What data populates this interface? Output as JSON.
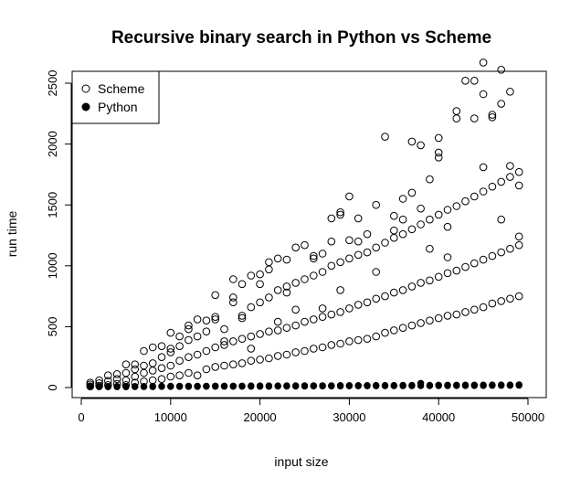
{
  "chart_data": {
    "type": "scatter",
    "title": "Recursive binary search in Python vs Scheme",
    "xlabel": "input size",
    "ylabel": "run time",
    "xlim": [
      0,
      50000
    ],
    "ylim": [
      -30,
      2750
    ],
    "x_ticks": [
      0,
      10000,
      20000,
      30000,
      40000,
      50000
    ],
    "x_tick_labels": [
      "0",
      "10000",
      "20000",
      "30000",
      "40000",
      "50000"
    ],
    "y_ticks": [
      0,
      500,
      1000,
      1500,
      2000,
      2500
    ],
    "y_tick_labels": [
      "0",
      "500",
      "1000",
      "1500",
      "2000",
      "2500"
    ],
    "grid": false,
    "legend_position": "top-left",
    "series": [
      {
        "name": "Scheme",
        "marker": "open-circle",
        "x": [
          1000,
          1000,
          1000,
          2000,
          2000,
          2000,
          3000,
          3000,
          3000,
          4000,
          4000,
          4000,
          5000,
          5000,
          5000,
          5000,
          6000,
          6000,
          6000,
          6000,
          7000,
          7000,
          7000,
          7000,
          8000,
          8000,
          8000,
          8000,
          9000,
          9000,
          9000,
          9000,
          10000,
          10000,
          10000,
          10000,
          10000,
          11000,
          11000,
          11000,
          11000,
          12000,
          12000,
          12000,
          12000,
          12000,
          13000,
          13000,
          13000,
          13000,
          14000,
          14000,
          14000,
          14000,
          15000,
          15000,
          15000,
          15000,
          15000,
          16000,
          16000,
          16000,
          16000,
          17000,
          17000,
          17000,
          17000,
          17000,
          18000,
          18000,
          18000,
          18000,
          18000,
          19000,
          19000,
          19000,
          19000,
          19000,
          20000,
          20000,
          20000,
          20000,
          20000,
          21000,
          21000,
          21000,
          21000,
          21000,
          22000,
          22000,
          22000,
          22000,
          22000,
          23000,
          23000,
          23000,
          23000,
          23000,
          24000,
          24000,
          24000,
          24000,
          24000,
          25000,
          25000,
          25000,
          25000,
          26000,
          26000,
          26000,
          26000,
          26000,
          27000,
          27000,
          27000,
          27000,
          27000,
          28000,
          28000,
          28000,
          28000,
          28000,
          29000,
          29000,
          29000,
          29000,
          29000,
          29000,
          30000,
          30000,
          30000,
          30000,
          30000,
          31000,
          31000,
          31000,
          31000,
          31000,
          32000,
          32000,
          32000,
          32000,
          33000,
          33000,
          33000,
          33000,
          33000,
          34000,
          34000,
          34000,
          34000,
          35000,
          35000,
          35000,
          35000,
          35000,
          36000,
          36000,
          36000,
          36000,
          36000,
          37000,
          37000,
          37000,
          37000,
          37000,
          38000,
          38000,
          38000,
          38000,
          38000,
          39000,
          39000,
          39000,
          39000,
          39000,
          40000,
          40000,
          40000,
          40000,
          40000,
          40000,
          41000,
          41000,
          41000,
          41000,
          41000,
          42000,
          42000,
          42000,
          42000,
          42000,
          43000,
          43000,
          43000,
          43000,
          44000,
          44000,
          44000,
          44000,
          44000,
          45000,
          45000,
          45000,
          45000,
          45000,
          45000,
          46000,
          46000,
          46000,
          46000,
          46000,
          47000,
          47000,
          47000,
          47000,
          47000,
          47000,
          48000,
          48000,
          48000,
          48000,
          48000,
          49000,
          49000,
          49000,
          49000,
          49000
        ],
        "y": [
          10,
          25,
          40,
          15,
          35,
          60,
          20,
          55,
          100,
          30,
          70,
          110,
          20,
          60,
          120,
          190,
          40,
          90,
          150,
          190,
          50,
          120,
          180,
          300,
          60,
          140,
          200,
          330,
          70,
          160,
          250,
          340,
          90,
          180,
          290,
          320,
          450,
          100,
          220,
          340,
          420,
          120,
          250,
          390,
          480,
          510,
          100,
          270,
          420,
          560,
          150,
          300,
          460,
          550,
          170,
          330,
          560,
          580,
          760,
          180,
          350,
          480,
          380,
          190,
          380,
          700,
          740,
          890,
          200,
          400,
          570,
          590,
          850,
          220,
          420,
          660,
          320,
          920,
          230,
          440,
          700,
          850,
          930,
          240,
          460,
          740,
          970,
          1030,
          260,
          470,
          800,
          540,
          1060,
          270,
          490,
          830,
          780,
          1050,
          290,
          510,
          860,
          1150,
          640,
          300,
          540,
          890,
          1170,
          320,
          560,
          920,
          1060,
          1080,
          330,
          580,
          950,
          1100,
          650,
          350,
          600,
          1000,
          1200,
          1390,
          360,
          620,
          1030,
          1440,
          800,
          1420,
          380,
          650,
          1060,
          1210,
          1570,
          390,
          680,
          1090,
          1200,
          1390,
          400,
          700,
          1110,
          1260,
          420,
          730,
          1150,
          1500,
          950,
          450,
          750,
          1190,
          2060,
          470,
          780,
          1230,
          1410,
          1290,
          490,
          800,
          1260,
          1550,
          1380,
          510,
          830,
          1300,
          1600,
          2020,
          530,
          860,
          1340,
          1470,
          1990,
          550,
          880,
          1380,
          1710,
          1140,
          570,
          910,
          1420,
          1890,
          1930,
          2050,
          590,
          940,
          1460,
          1070,
          1320,
          600,
          960,
          1490,
          2210,
          2270,
          620,
          990,
          1530,
          2520,
          640,
          1020,
          1570,
          2210,
          2520,
          660,
          1050,
          1610,
          2670,
          1810,
          2410,
          690,
          1080,
          1650,
          2240,
          2220,
          710,
          1110,
          1690,
          2330,
          2610,
          1380,
          730,
          1140,
          1730,
          1820,
          2430,
          750,
          1170,
          1770,
          1660,
          1240
        ]
      },
      {
        "name": "Python",
        "marker": "filled-circle",
        "x": [
          1000,
          1000,
          1000,
          2000,
          2000,
          3000,
          3000,
          4000,
          4000,
          5000,
          5000,
          6000,
          6000,
          7000,
          7000,
          8000,
          8000,
          9000,
          9000,
          10000,
          10000,
          11000,
          11000,
          12000,
          12000,
          13000,
          13000,
          14000,
          14000,
          15000,
          15000,
          16000,
          16000,
          17000,
          17000,
          18000,
          18000,
          19000,
          19000,
          20000,
          20000,
          21000,
          21000,
          22000,
          22000,
          23000,
          23000,
          24000,
          24000,
          25000,
          25000,
          26000,
          26000,
          27000,
          27000,
          28000,
          28000,
          29000,
          29000,
          30000,
          30000,
          31000,
          31000,
          32000,
          32000,
          33000,
          33000,
          34000,
          34000,
          35000,
          35000,
          36000,
          36000,
          37000,
          37000,
          38000,
          38000,
          39000,
          39000,
          40000,
          40000,
          41000,
          41000,
          42000,
          42000,
          43000,
          43000,
          44000,
          44000,
          45000,
          45000,
          46000,
          46000,
          47000,
          47000,
          48000,
          48000,
          49000,
          49000
        ],
        "y": [
          5,
          8,
          12,
          5,
          8,
          5,
          10,
          6,
          10,
          6,
          10,
          7,
          10,
          7,
          10,
          7,
          11,
          8,
          11,
          8,
          11,
          8,
          12,
          8,
          12,
          8,
          12,
          9,
          12,
          9,
          13,
          9,
          13,
          9,
          13,
          10,
          13,
          10,
          14,
          10,
          14,
          10,
          14,
          11,
          14,
          11,
          15,
          11,
          15,
          11,
          15,
          12,
          16,
          12,
          16,
          12,
          16,
          12,
          17,
          13,
          17,
          13,
          17,
          13,
          17,
          13,
          18,
          14,
          18,
          14,
          18,
          14,
          19,
          14,
          19,
          15,
          35,
          15,
          19,
          15,
          20,
          15,
          20,
          16,
          20,
          16,
          21,
          16,
          21,
          16,
          21,
          17,
          22,
          17,
          22,
          17,
          22,
          18,
          23
        ]
      }
    ]
  }
}
